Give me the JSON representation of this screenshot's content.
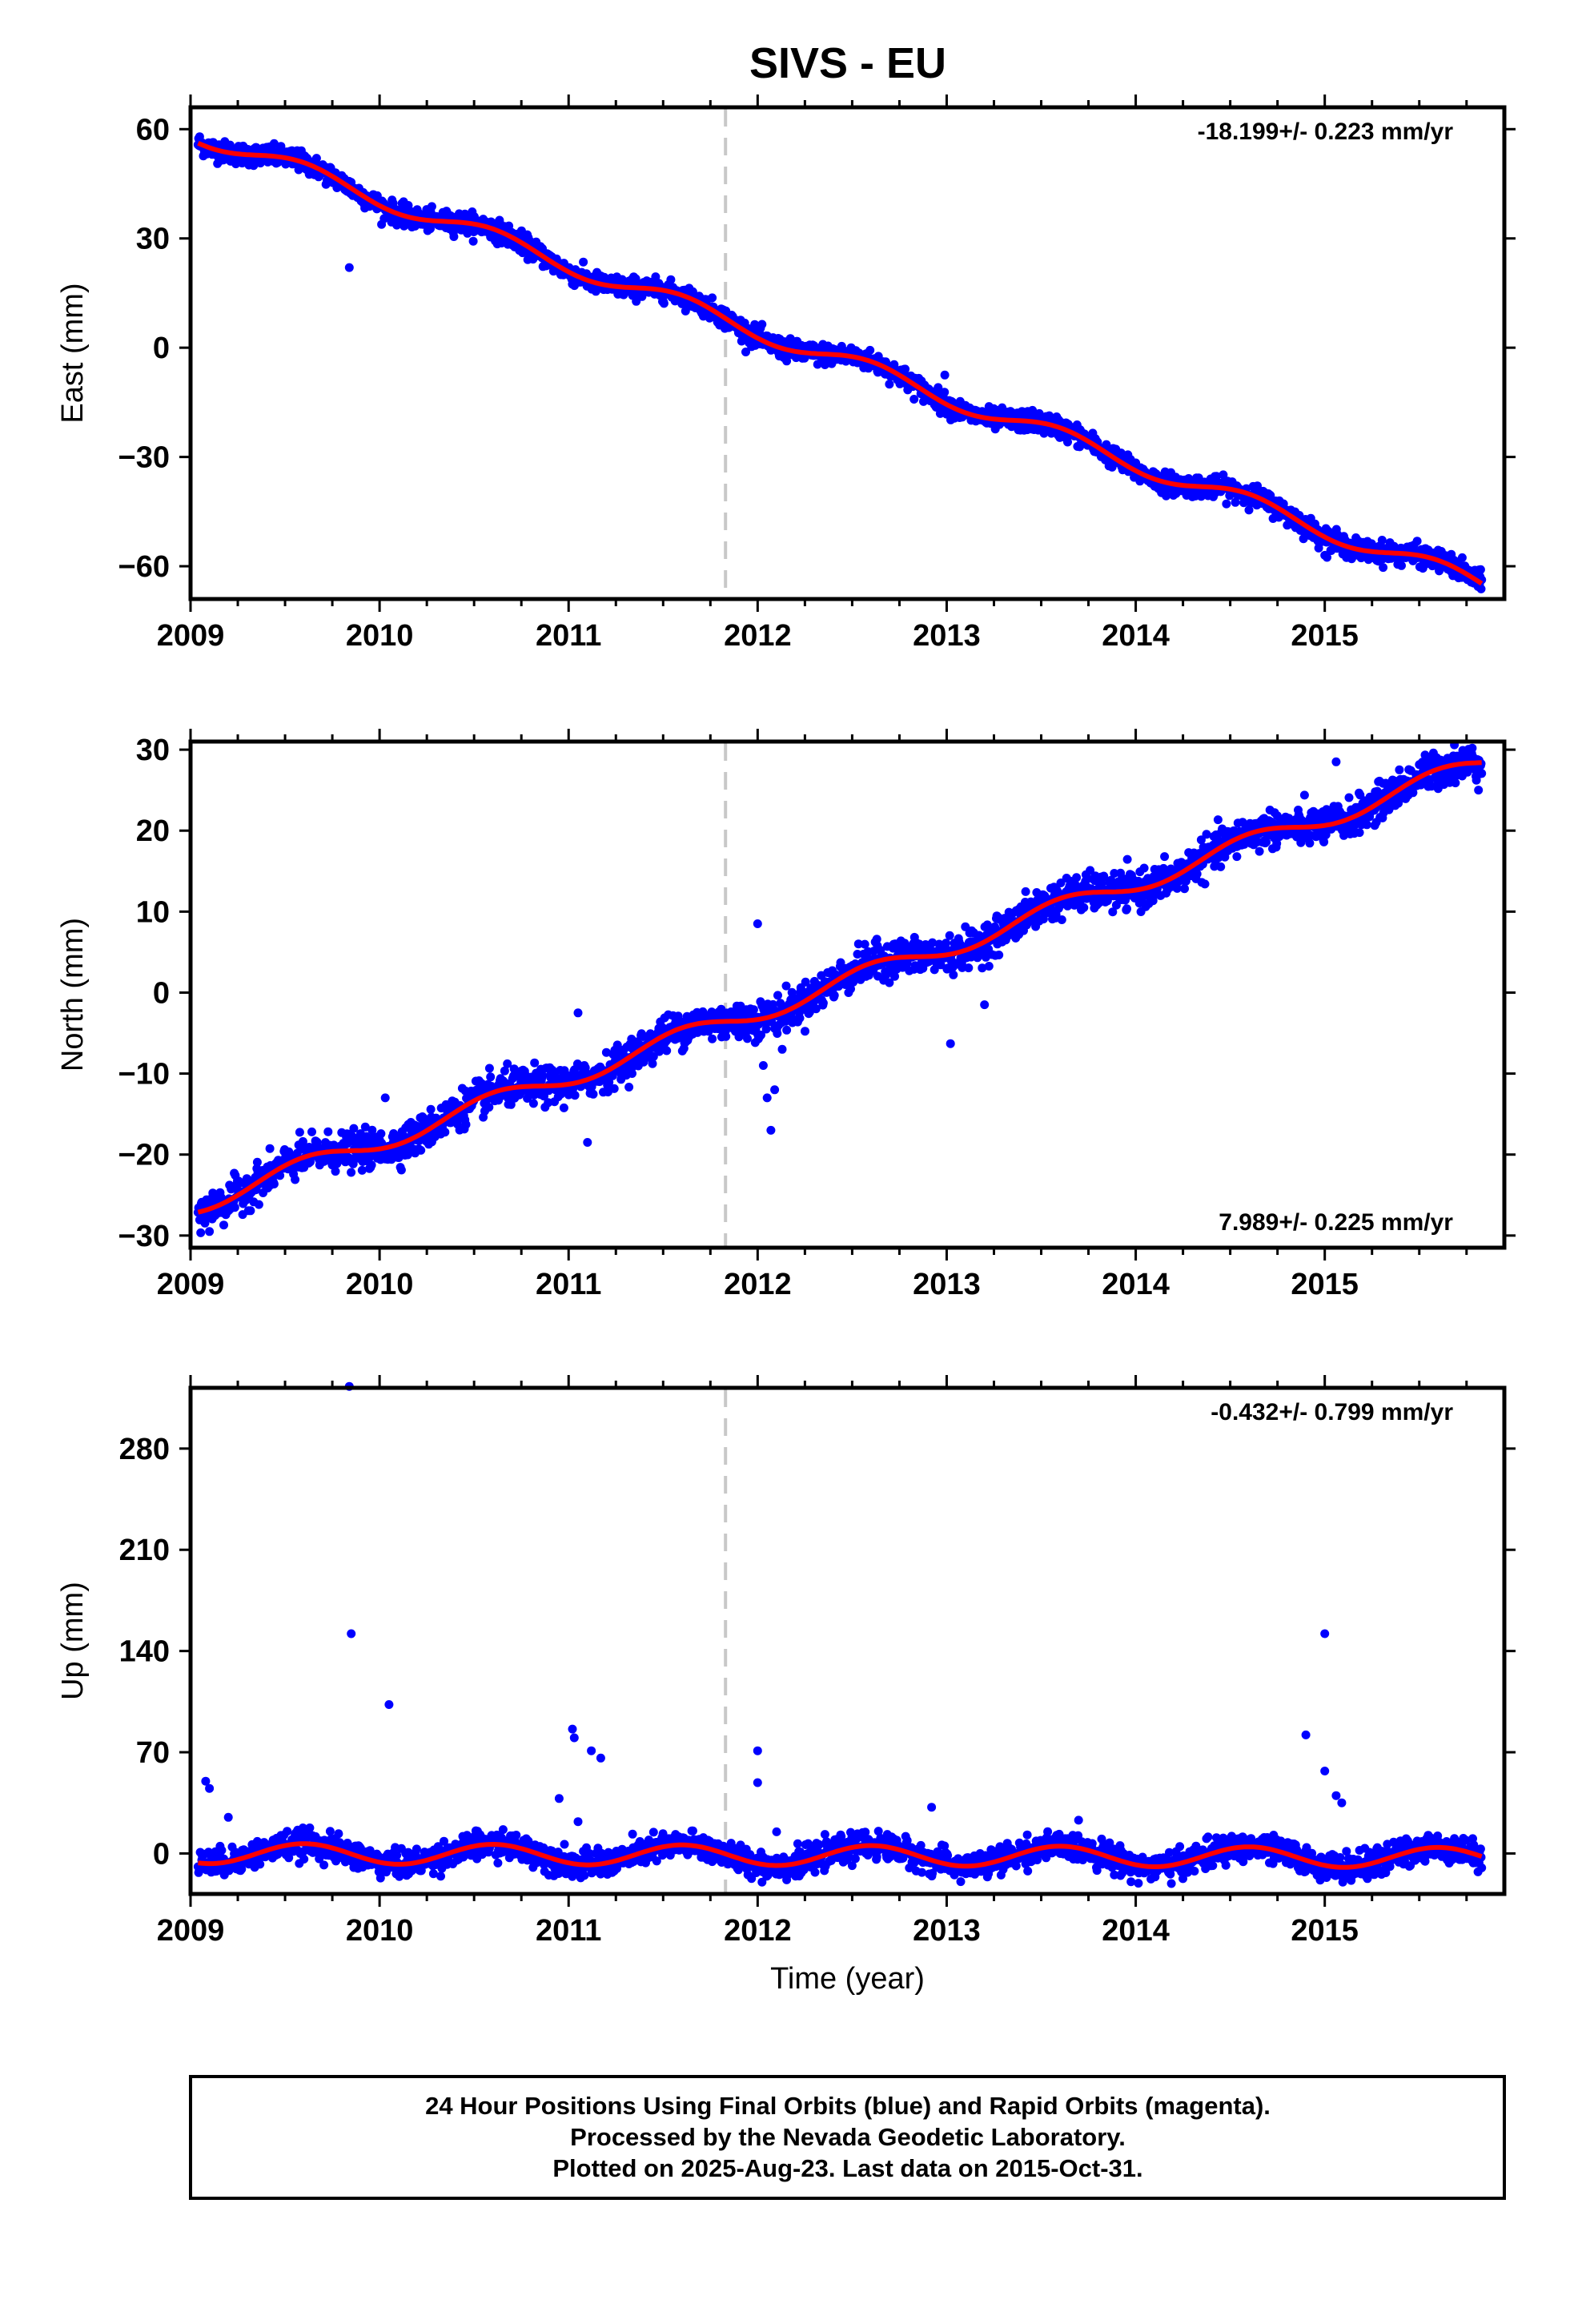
{
  "title": "SIVS - EU",
  "colors": {
    "final_orbits": "#0000ff",
    "fit_line": "#ff0000",
    "break_line": "#c8c8c8",
    "frame": "#000000"
  },
  "chart_data": [
    {
      "type": "scatter",
      "panel": "east",
      "ylabel": "East (mm)",
      "xlabel": "",
      "xlim": [
        2009.0,
        2015.95
      ],
      "ylim": [
        -69,
        66
      ],
      "yticks": [
        60,
        30,
        0,
        -30,
        -60
      ],
      "xticks": [
        2009,
        2010,
        2011,
        2012,
        2013,
        2014,
        2015
      ],
      "rate_label": "-18.199+/- 0.223 mm/yr",
      "rate_label_position": "top-right",
      "rate_mm_per_yr": -18.199,
      "break_epoch": 2011.83,
      "time_range": [
        2009.04,
        2015.83
      ],
      "fit_start": 58.5,
      "seasonal_amplitude": 2.5,
      "noise": 1.4,
      "outliers": [
        {
          "x": 2009.84,
          "y": 22
        },
        {
          "x": 2012.02,
          "y": 1
        },
        {
          "x": 2012.99,
          "y": -7.5
        },
        {
          "x": 2015.0,
          "y": -57
        }
      ]
    },
    {
      "type": "scatter",
      "panel": "north",
      "ylabel": "North (mm)",
      "xlabel": "",
      "xlim": [
        2009.0,
        2015.95
      ],
      "ylim": [
        -31.5,
        31
      ],
      "yticks": [
        30,
        20,
        10,
        0,
        -10,
        -20,
        -30
      ],
      "xticks": [
        2009,
        2010,
        2011,
        2012,
        2013,
        2014,
        2015
      ],
      "rate_label": "7.989+/- 0.225 mm/yr",
      "rate_label_position": "bottom-right",
      "rate_mm_per_yr": 7.989,
      "break_epoch": 2011.83,
      "time_range": [
        2009.04,
        2015.83
      ],
      "fit_start": -26.0,
      "seasonal_amplitude": 1.2,
      "noise": 1.1,
      "outliers": [
        {
          "x": 2009.1,
          "y": -29.5
        },
        {
          "x": 2010.03,
          "y": -13
        },
        {
          "x": 2011.05,
          "y": -2.5
        },
        {
          "x": 2011.1,
          "y": -18.5
        },
        {
          "x": 2012.0,
          "y": 8.5
        },
        {
          "x": 2012.03,
          "y": -9
        },
        {
          "x": 2012.05,
          "y": -13
        },
        {
          "x": 2012.07,
          "y": -17
        },
        {
          "x": 2012.09,
          "y": -12
        },
        {
          "x": 2012.13,
          "y": -7
        },
        {
          "x": 2013.02,
          "y": -6.3
        },
        {
          "x": 2013.2,
          "y": -1.5
        },
        {
          "x": 2015.06,
          "y": 28.5
        }
      ]
    },
    {
      "type": "scatter",
      "panel": "up",
      "ylabel": "Up (mm)",
      "xlabel": "Time (year)",
      "xlim": [
        2009.0,
        2015.95
      ],
      "ylim": [
        -28,
        322
      ],
      "yticks": [
        280,
        210,
        140,
        70,
        0
      ],
      "xticks": [
        2009,
        2010,
        2011,
        2012,
        2013,
        2014,
        2015
      ],
      "rate_label": "-0.432+/- 0.799 mm/yr",
      "rate_label_position": "top-right",
      "rate_mm_per_yr": -0.432,
      "break_epoch": 2011.83,
      "time_range": [
        2009.04,
        2015.83
      ],
      "fit_start": 0,
      "seasonal_amplitude": 7,
      "noise": 4.5,
      "outliers": [
        {
          "x": 2009.08,
          "y": 50
        },
        {
          "x": 2009.1,
          "y": 45
        },
        {
          "x": 2009.2,
          "y": 25
        },
        {
          "x": 2009.84,
          "y": 323
        },
        {
          "x": 2009.85,
          "y": 152
        },
        {
          "x": 2010.05,
          "y": 103
        },
        {
          "x": 2010.95,
          "y": 38
        },
        {
          "x": 2011.02,
          "y": 86
        },
        {
          "x": 2011.03,
          "y": 80
        },
        {
          "x": 2011.12,
          "y": 71
        },
        {
          "x": 2011.17,
          "y": 66
        },
        {
          "x": 2011.05,
          "y": 22
        },
        {
          "x": 2012.0,
          "y": 71
        },
        {
          "x": 2012.0,
          "y": 49
        },
        {
          "x": 2012.1,
          "y": 15
        },
        {
          "x": 2012.92,
          "y": 32
        },
        {
          "x": 2014.9,
          "y": 82
        },
        {
          "x": 2015.0,
          "y": 57
        },
        {
          "x": 2015.0,
          "y": 152
        },
        {
          "x": 2015.06,
          "y": 40
        },
        {
          "x": 2015.09,
          "y": 35
        }
      ]
    }
  ],
  "footer": {
    "line1": "24 Hour Positions Using Final Orbits (blue) and Rapid Orbits (magenta).",
    "line2": "Processed by the Nevada Geodetic Laboratory.",
    "line3": "Plotted on 2025-Aug-23. Last data on 2015-Oct-31."
  }
}
